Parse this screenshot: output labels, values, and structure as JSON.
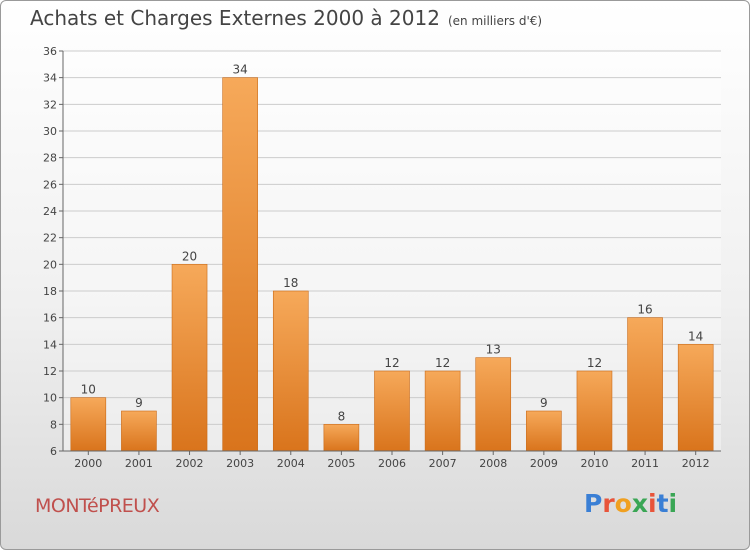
{
  "title": "Achats et Charges Externes 2000 à 2012",
  "subtitle": "(en milliers d'€)",
  "town": "MONTéPREUX",
  "logo": {
    "letters": [
      "P",
      "r",
      "o",
      "x",
      "i",
      "t",
      "i"
    ],
    "colors": [
      "#3a7fd5",
      "#e8543a",
      "#f0a020",
      "#3aa655",
      "#e8543a",
      "#3a7fd5",
      "#3aa655"
    ]
  },
  "colors": {
    "bar_top": "#f6a95a",
    "bar_bottom": "#d9741c",
    "town": "#c0504d"
  },
  "chart_data": {
    "type": "bar",
    "categories": [
      "2000",
      "2001",
      "2002",
      "2003",
      "2004",
      "2005",
      "2006",
      "2007",
      "2008",
      "2009",
      "2010",
      "2011",
      "2012"
    ],
    "values": [
      10,
      9,
      20,
      34,
      18,
      8,
      12,
      12,
      13,
      9,
      12,
      16,
      14
    ],
    "title": "Achats et Charges Externes 2000 à 2012",
    "xlabel": "",
    "ylabel": "",
    "ylim": [
      6,
      36
    ],
    "yticks": [
      6,
      8,
      10,
      12,
      14,
      16,
      18,
      20,
      22,
      24,
      26,
      28,
      30,
      32,
      34,
      36
    ],
    "grid": true
  }
}
